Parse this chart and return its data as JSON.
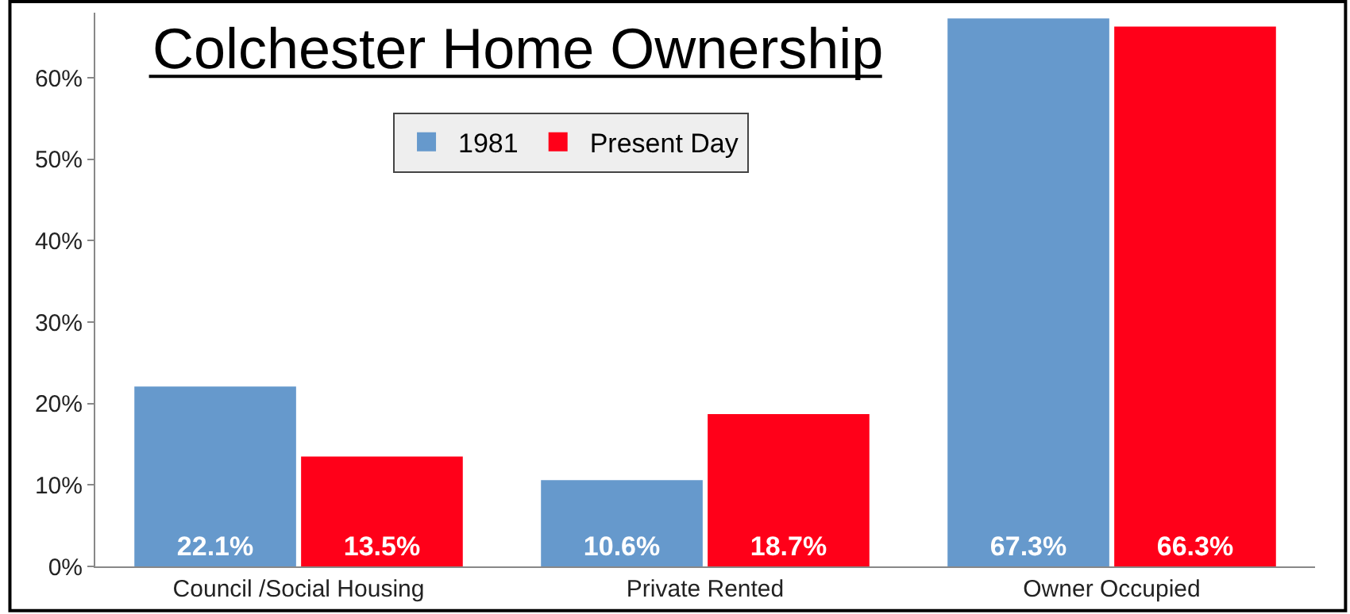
{
  "chart_data": {
    "type": "bar",
    "title": "Colchester Home Ownership",
    "categories": [
      "Council /Social Housing",
      "Private Rented",
      "Owner Occupied"
    ],
    "series": [
      {
        "name": "1981",
        "color": "#6699cc",
        "values": [
          22.1,
          10.6,
          67.3
        ]
      },
      {
        "name": "Present Day",
        "color": "#ff0019",
        "values": [
          13.5,
          18.7,
          66.3
        ]
      }
    ],
    "value_labels": [
      [
        "22.1%",
        "10.6%",
        "67.3%"
      ],
      [
        "13.5%",
        "18.7%",
        "66.3%"
      ]
    ],
    "ylim": [
      0,
      68
    ],
    "yticks": [
      {
        "value": 0,
        "label": "0%"
      },
      {
        "value": 10,
        "label": "10%"
      },
      {
        "value": 20,
        "label": "20%"
      },
      {
        "value": 30,
        "label": "30%"
      },
      {
        "value": 40,
        "label": "40%"
      },
      {
        "value": 50,
        "label": "50%"
      },
      {
        "value": 60,
        "label": "60%"
      }
    ],
    "grid": false,
    "legend": "top"
  }
}
